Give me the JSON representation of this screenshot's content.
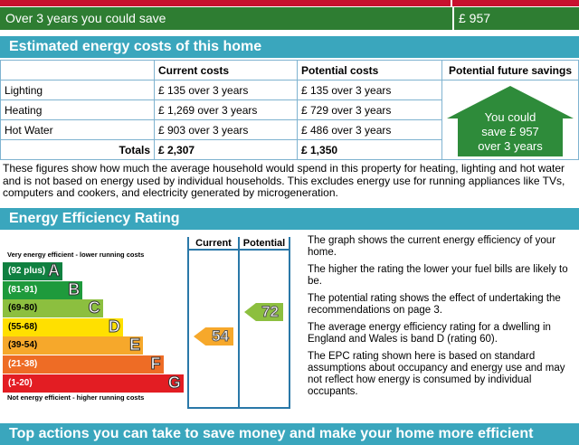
{
  "savings_bar": {
    "label": "Over 3 years you could save",
    "value": "£ 957"
  },
  "costs": {
    "title": "Estimated energy costs of this home",
    "headers": [
      "",
      "Current costs",
      "Potential costs",
      "Potential future savings"
    ],
    "rows": [
      {
        "label": "Lighting",
        "current": "£ 135 over 3 years",
        "potential": "£ 135 over 3 years"
      },
      {
        "label": "Heating",
        "current": "£ 1,269 over 3 years",
        "potential": "£ 729 over 3 years"
      },
      {
        "label": "Hot Water",
        "current": "£ 903 over 3 years",
        "potential": "£ 486 over 3 years"
      }
    ],
    "totals": {
      "label": "Totals",
      "current": "£ 2,307",
      "potential": "£ 1,350"
    },
    "savings_house": {
      "line1": "You could",
      "line2": "save £ 957",
      "line3": "over 3 years",
      "color": "#2e8b3a"
    },
    "note": "These figures show how much the average household would spend in this property for heating, lighting and hot water and is not based on energy used by individual households. This excludes energy use for running appliances like TVs, computers and cookers, and electricity generated by microgeneration."
  },
  "rating": {
    "title": "Energy Efficiency Rating",
    "top_caption": "Very energy efficient - lower running costs",
    "bottom_caption": "Not energy efficient - higher running costs",
    "col_current": "Current",
    "col_potential": "Potential",
    "bands": [
      {
        "range": "(92 plus)",
        "letter": "A",
        "color": "#108040"
      },
      {
        "range": "(81-91)",
        "letter": "B",
        "color": "#1e9a3c"
      },
      {
        "range": "(69-80)",
        "letter": "C",
        "color": "#8cbf3f"
      },
      {
        "range": "(55-68)",
        "letter": "D",
        "color": "#ffe000"
      },
      {
        "range": "(39-54)",
        "letter": "E",
        "color": "#f6a82b"
      },
      {
        "range": "(21-38)",
        "letter": "F",
        "color": "#ee6c25"
      },
      {
        "range": "(1-20)",
        "letter": "G",
        "color": "#e31d23"
      }
    ],
    "current": {
      "value": "54",
      "color": "#f6a82b"
    },
    "potential": {
      "value": "72",
      "color": "#8cbf3f"
    },
    "notes": [
      "The graph shows the current energy efficiency of your home.",
      "The higher the rating the lower your fuel bills are likely to be.",
      "The potential rating shows the effect of undertaking the recommendations on page 3.",
      "The average energy efficiency rating for a dwelling in England and Wales is band D (rating 60).",
      "The EPC rating shown here is based on standard assumptions about occupancy and energy use and may not reflect how energy is consumed by individual occupants."
    ]
  },
  "actions": {
    "title": "Top actions you can take to save money and make your home more efficient"
  }
}
